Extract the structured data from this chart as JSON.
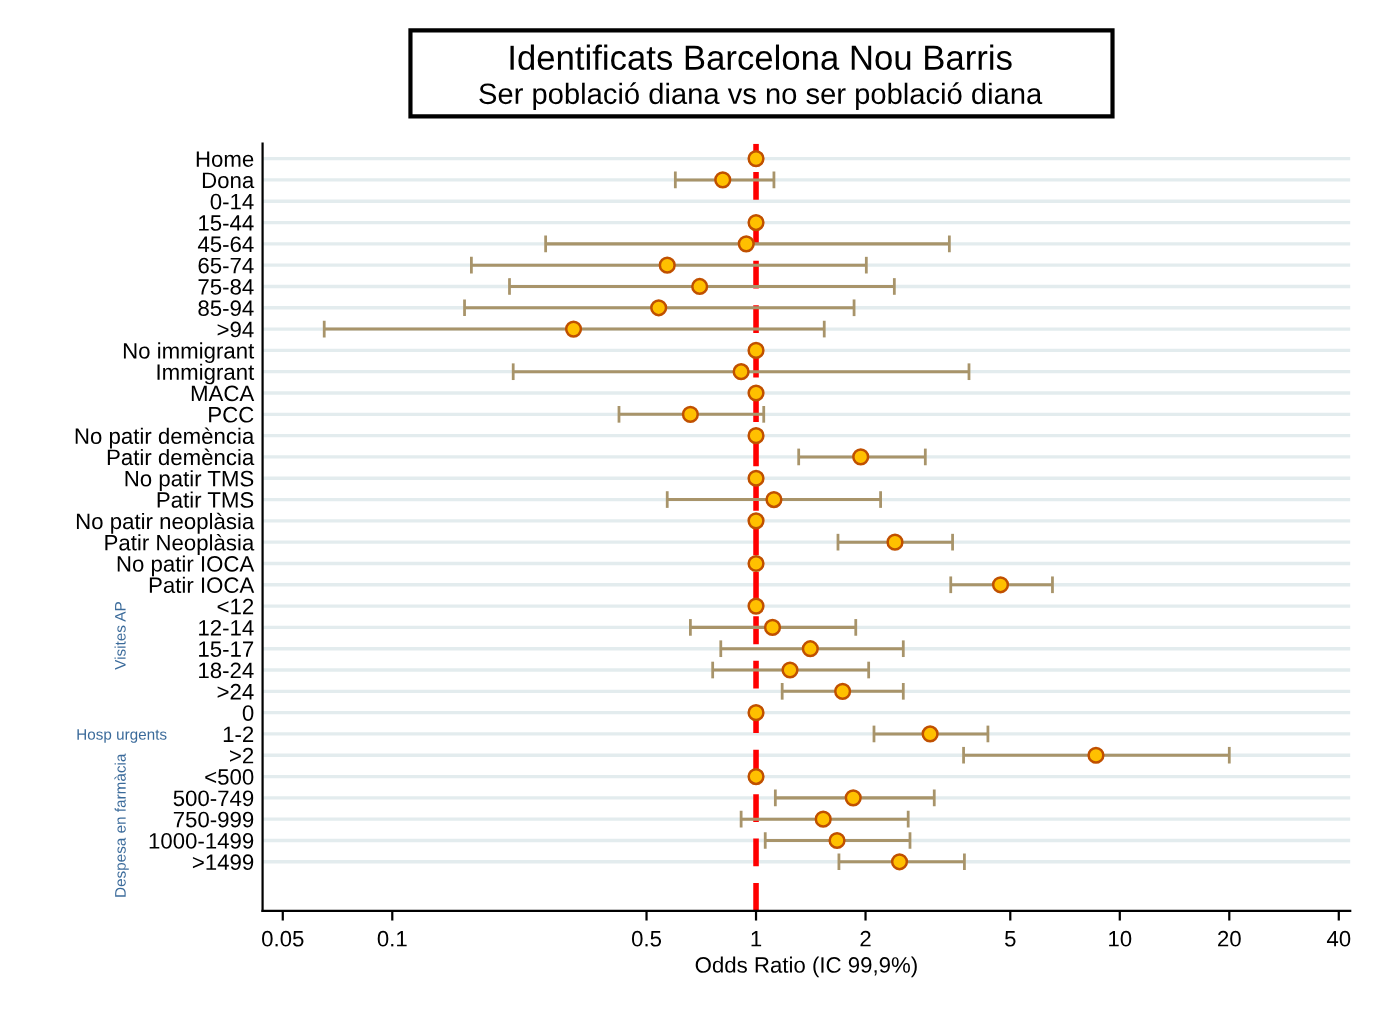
{
  "chart_data": {
    "type": "scatter",
    "orientation": "horizontal",
    "title": "Identificats Barcelona Nou Barris",
    "subtitle": "Ser població diana vs no ser població diana",
    "xlabel": "Odds Ratio (IC 99,9%)",
    "categories": [
      "Home",
      "Dona",
      "0-14",
      "15-44",
      "45-64",
      "65-74",
      "75-84",
      "85-94",
      ">94",
      "No immigrant",
      "Immigrant",
      "MACA",
      "PCC",
      "No patir demència",
      "Patir demència",
      "No patir TMS",
      "Patir TMS",
      "No patir neoplàsia",
      "Patir Neoplàsia",
      "No patir IOCA",
      "Patir IOCA",
      "<12",
      "12-14",
      "15-17",
      "18-24",
      ">24",
      "0",
      "1-2",
      ">2",
      "<500",
      "500-749",
      "750-999",
      "1000-1499",
      ">1499"
    ],
    "series": [
      {
        "color": "#ffc000",
        "values": [
          1,
          0.81,
          null,
          1,
          0.94,
          0.57,
          0.7,
          0.54,
          0.315,
          1,
          0.91,
          1,
          0.66,
          1,
          1.94,
          1,
          1.12,
          1,
          2.41,
          1,
          4.7,
          1,
          1.11,
          1.41,
          1.24,
          1.73,
          1,
          3.01,
          8.6,
          1,
          1.85,
          1.53,
          1.67,
          2.48
        ],
        "errors": [
          null,
          [
            0.6,
            1.12
          ],
          null,
          null,
          [
            0.264,
            3.4
          ],
          [
            0.165,
            2.01
          ],
          [
            0.21,
            2.4
          ],
          [
            0.158,
            1.86
          ],
          [
            0.065,
            1.54
          ],
          null,
          [
            0.215,
            3.85
          ],
          null,
          [
            0.42,
            1.05
          ],
          null,
          [
            1.31,
            2.92
          ],
          null,
          [
            0.57,
            2.2
          ],
          null,
          [
            1.68,
            3.47
          ],
          null,
          [
            3.43,
            6.53
          ],
          null,
          [
            0.66,
            1.88
          ],
          [
            0.8,
            2.54
          ],
          [
            0.76,
            2.04
          ],
          [
            1.18,
            2.54
          ],
          null,
          [
            2.11,
            4.34
          ],
          [
            3.72,
            20
          ],
          null,
          [
            1.13,
            3.09
          ],
          [
            0.91,
            2.62
          ],
          [
            1.06,
            2.65
          ],
          [
            1.69,
            3.74
          ]
        ]
      }
    ],
    "log": "x",
    "xlim": [
      0.044,
      43
    ],
    "xticks": [
      0.05,
      0.1,
      0.5,
      1,
      2,
      5,
      10,
      20,
      40
    ],
    "grid": "y",
    "marker": "circle",
    "ref_lines": [
      {
        "axis": "x",
        "value": 1,
        "color": "#ff0000",
        "line_style": "dashed"
      }
    ],
    "annotations": [
      "Visites AP",
      "Hosp urgents",
      "Despesa en farmàcia"
    ]
  }
}
